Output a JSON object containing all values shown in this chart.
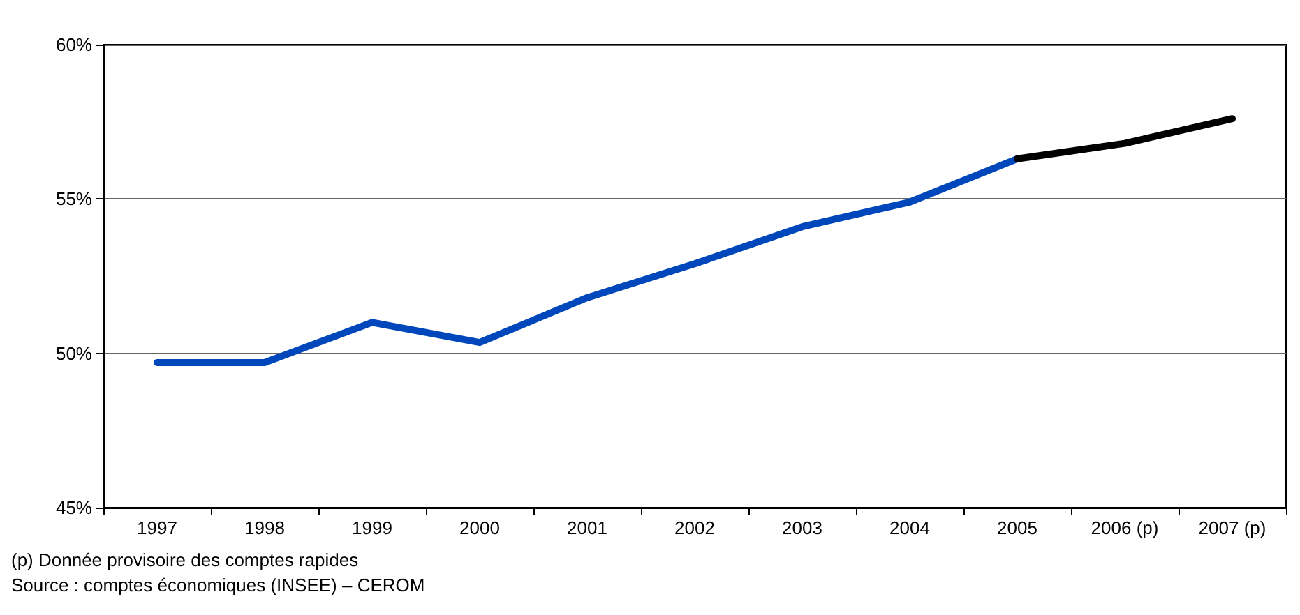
{
  "chart_data": {
    "type": "line",
    "categories": [
      "1997",
      "1998",
      "1999",
      "2000",
      "2001",
      "2002",
      "2003",
      "2004",
      "2005",
      "2006 (p)",
      "2007 (p)"
    ],
    "series": [
      {
        "color": "#0047bb",
        "values": [
          49.7,
          49.7,
          51.0,
          50.35,
          51.8,
          52.9,
          54.1,
          54.9,
          56.3,
          null,
          null
        ]
      },
      {
        "color": "#000000",
        "values": [
          null,
          null,
          null,
          null,
          null,
          null,
          null,
          null,
          56.3,
          56.8,
          57.6
        ]
      }
    ],
    "ylim": [
      45,
      60
    ],
    "yticks": [
      {
        "value": 45,
        "label": "45%"
      },
      {
        "value": 50,
        "label": "50%"
      },
      {
        "value": 55,
        "label": "55%"
      },
      {
        "value": 60,
        "label": "60%"
      }
    ],
    "grid": "y",
    "marker": "none",
    "line_style": "solid",
    "annotations": [
      "(p) Donnée provisoire des comptes rapides",
      "Source : comptes économiques (INSEE) – CEROM"
    ]
  }
}
